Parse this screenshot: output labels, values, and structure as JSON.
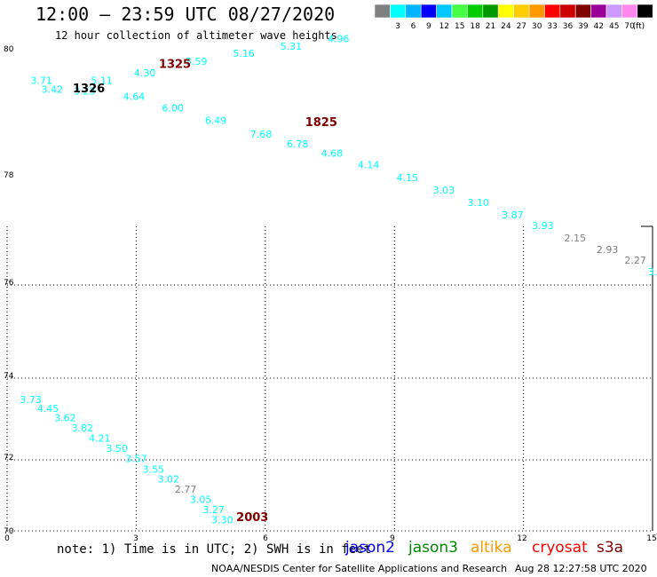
{
  "title": "12:00 – 23:59 UTC 08/27/2020",
  "subtitle": "12 hour collection of altimeter wave heights",
  "legend": {
    "unit": "(ft)",
    "bins": [
      {
        "label": "",
        "color": "#808080"
      },
      {
        "label": "3",
        "color": "#00ffff"
      },
      {
        "label": "6",
        "color": "#00b4ff"
      },
      {
        "label": "9",
        "color": "#0000ff"
      },
      {
        "label": "12",
        "color": "#00c8ff"
      },
      {
        "label": "15",
        "color": "#44ff44"
      },
      {
        "label": "18",
        "color": "#00cc00"
      },
      {
        "label": "21",
        "color": "#009900"
      },
      {
        "label": "24",
        "color": "#ffff00"
      },
      {
        "label": "27",
        "color": "#ffcc00"
      },
      {
        "label": "30",
        "color": "#ff9900"
      },
      {
        "label": "33",
        "color": "#ff0000"
      },
      {
        "label": "36",
        "color": "#cc0000"
      },
      {
        "label": "39",
        "color": "#800000"
      },
      {
        "label": "42",
        "color": "#990099"
      },
      {
        "label": "45",
        "color": "#cc99ff"
      },
      {
        "label": "70",
        "color": "#ff88ee"
      },
      {
        "label": "",
        "color": "#000000"
      }
    ]
  },
  "map": {
    "x_ticks": [
      "0",
      "3",
      "6",
      "9",
      "12",
      "15"
    ],
    "y_ticks": [
      "70",
      "72",
      "74",
      "76",
      "78",
      "80"
    ],
    "x_range": [
      0,
      15
    ],
    "y_range": [
      70,
      80
    ]
  },
  "track_labels": [
    {
      "text": "1326",
      "lon": 1.9,
      "lat": 79.1,
      "color": "#000000"
    },
    {
      "text": "1325",
      "lon": 3.9,
      "lat": 79.6,
      "color": "#800000"
    },
    {
      "text": "1825",
      "lon": 7.3,
      "lat": 78.4,
      "color": "#800000"
    },
    {
      "text": "2003",
      "lon": 5.7,
      "lat": 70.2,
      "color": "#800000"
    }
  ],
  "wave_heights": [
    {
      "text": "3.71",
      "lon": 0.8,
      "lat": 79.27,
      "color": "#00ffff"
    },
    {
      "text": "3.42",
      "lon": 1.05,
      "lat": 79.09,
      "color": "#00ffff"
    },
    {
      "text": "3.23",
      "lon": 1.8,
      "lat": 79.05,
      "color": "#00ffff"
    },
    {
      "text": "5.11",
      "lon": 2.2,
      "lat": 79.27,
      "color": "#00ffff"
    },
    {
      "text": "4.30",
      "lon": 3.2,
      "lat": 79.43,
      "color": "#00ffff"
    },
    {
      "text": "3.59",
      "lon": 4.4,
      "lat": 79.67,
      "color": "#00ffff"
    },
    {
      "text": "5.16",
      "lon": 5.5,
      "lat": 79.83,
      "color": "#00ffff"
    },
    {
      "text": "5.31",
      "lon": 6.6,
      "lat": 79.98,
      "color": "#00ffff"
    },
    {
      "text": "4.96",
      "lon": 7.7,
      "lat": 80.14,
      "color": "#00ffff"
    },
    {
      "text": "4.64",
      "lon": 2.95,
      "lat": 78.94,
      "color": "#00ffff"
    },
    {
      "text": "6.00",
      "lon": 3.85,
      "lat": 78.7,
      "color": "#00ffff"
    },
    {
      "text": "6.49",
      "lon": 4.85,
      "lat": 78.44,
      "color": "#00ffff"
    },
    {
      "text": "7.68",
      "lon": 5.9,
      "lat": 78.16,
      "color": "#00ffff"
    },
    {
      "text": "6.78",
      "lon": 6.75,
      "lat": 77.96,
      "color": "#00ffff"
    },
    {
      "text": "4.68",
      "lon": 7.55,
      "lat": 77.76,
      "color": "#00ffff"
    },
    {
      "text": "4.14",
      "lon": 8.4,
      "lat": 77.52,
      "color": "#00ffff"
    },
    {
      "text": "4.15",
      "lon": 9.3,
      "lat": 77.26,
      "color": "#00ffff"
    },
    {
      "text": "3.03",
      "lon": 10.15,
      "lat": 77.0,
      "color": "#00ffff"
    },
    {
      "text": "3.10",
      "lon": 10.95,
      "lat": 76.74,
      "color": "#00ffff"
    },
    {
      "text": "3.87",
      "lon": 11.75,
      "lat": 76.48,
      "color": "#00ffff"
    },
    {
      "text": "3.93",
      "lon": 12.45,
      "lat": 76.26,
      "color": "#00ffff"
    },
    {
      "text": "2.15",
      "lon": 13.2,
      "lat": 76.0,
      "color": "#808080"
    },
    {
      "text": "2.93",
      "lon": 13.95,
      "lat": 75.76,
      "color": "#808080"
    },
    {
      "text": "2.27",
      "lon": 14.6,
      "lat": 75.54,
      "color": "#808080"
    },
    {
      "text": "3.73",
      "lon": 0.55,
      "lat": 72.65,
      "color": "#00ffff"
    },
    {
      "text": "4.45",
      "lon": 0.95,
      "lat": 72.47,
      "color": "#00ffff"
    },
    {
      "text": "3.62",
      "lon": 1.35,
      "lat": 72.27,
      "color": "#00ffff"
    },
    {
      "text": "3.82",
      "lon": 1.75,
      "lat": 72.06,
      "color": "#00ffff"
    },
    {
      "text": "4.21",
      "lon": 2.15,
      "lat": 71.85,
      "color": "#00ffff"
    },
    {
      "text": "3.50",
      "lon": 2.55,
      "lat": 71.64,
      "color": "#00ffff"
    },
    {
      "text": "3.57",
      "lon": 3.0,
      "lat": 71.43,
      "color": "#00ffff"
    },
    {
      "text": "3.55",
      "lon": 3.4,
      "lat": 71.21,
      "color": "#00ffff"
    },
    {
      "text": "3.02",
      "lon": 3.75,
      "lat": 71.0,
      "color": "#00ffff"
    },
    {
      "text": "2.77",
      "lon": 4.15,
      "lat": 70.79,
      "color": "#808080"
    },
    {
      "text": "3.05",
      "lon": 4.5,
      "lat": 70.58,
      "color": "#00ffff"
    },
    {
      "text": "3.27",
      "lon": 4.8,
      "lat": 70.37,
      "color": "#00ffff"
    },
    {
      "text": "3.30",
      "lon": 5.0,
      "lat": 70.16,
      "color": "#00ffff"
    },
    {
      "text": "3.",
      "lon": 15.0,
      "lat": 75.3,
      "color": "#00ffff"
    }
  ],
  "note": "note: 1) Time is in UTC; 2) SWH is in feet",
  "satellites": [
    {
      "name": "jason2",
      "color": "#0000ff"
    },
    {
      "name": "jason3",
      "color": "#008800"
    },
    {
      "name": "altika",
      "color": "#ff9900"
    },
    {
      "name": "cryosat",
      "color": "#ff0000"
    },
    {
      "name": "s3a",
      "color": "#800000"
    }
  ],
  "credit": "NOAA/NESDIS Center for Satellite Applications and Research",
  "generated": "Aug 28 12:27:58 UTC 2020"
}
